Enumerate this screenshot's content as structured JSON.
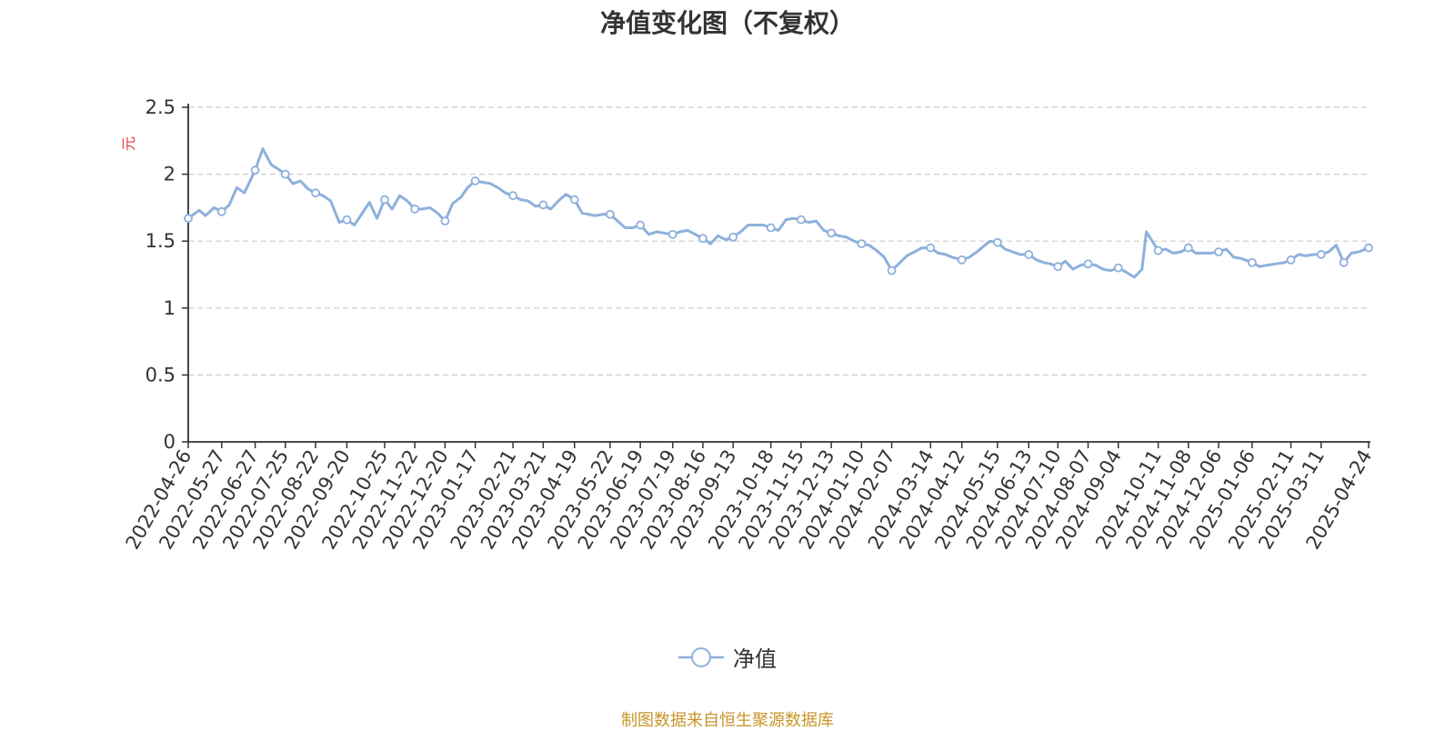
{
  "chart_data": {
    "type": "line",
    "title": "净值变化图（不复权）",
    "ylabel": "元",
    "xlabel": "",
    "ylim": [
      0,
      2.5
    ],
    "yticks": [
      0,
      0.5,
      1,
      1.5,
      2,
      2.5
    ],
    "ytick_labels": [
      "0",
      "0.5",
      "1",
      "1.5",
      "2",
      "2.5"
    ],
    "grid": true,
    "legend_position": "bottom-center",
    "x_tick_labels": [
      "2022-04-26",
      "2022-05-27",
      "2022-06-27",
      "2022-07-25",
      "2022-08-22",
      "2022-09-20",
      "2022-10-25",
      "2022-11-22",
      "2022-12-20",
      "2023-01-17",
      "2023-02-21",
      "2023-03-21",
      "2023-04-19",
      "2023-05-22",
      "2023-06-19",
      "2023-07-19",
      "2023-08-16",
      "2023-09-13",
      "2023-10-18",
      "2023-11-15",
      "2023-12-13",
      "2024-01-10",
      "2024-02-07",
      "2024-03-14",
      "2024-04-12",
      "2024-05-15",
      "2024-06-13",
      "2024-07-10",
      "2024-08-07",
      "2024-09-04",
      "2024-10-11",
      "2024-11-08",
      "2024-12-06",
      "2025-01-06",
      "2025-02-11",
      "2025-03-11",
      "2025-04-24"
    ],
    "series": [
      {
        "name": "净值",
        "color": "#8eb0dc",
        "x": [
          "2022-04-26",
          "2022-05-06",
          "2022-05-12",
          "2022-05-20",
          "2022-05-27",
          "2022-06-03",
          "2022-06-10",
          "2022-06-17",
          "2022-06-27",
          "2022-07-04",
          "2022-07-12",
          "2022-07-18",
          "2022-07-25",
          "2022-08-01",
          "2022-08-08",
          "2022-08-15",
          "2022-08-22",
          "2022-08-29",
          "2022-09-05",
          "2022-09-13",
          "2022-09-20",
          "2022-09-27",
          "2022-10-11",
          "2022-10-18",
          "2022-10-25",
          "2022-11-01",
          "2022-11-08",
          "2022-11-15",
          "2022-11-22",
          "2022-11-29",
          "2022-12-06",
          "2022-12-13",
          "2022-12-20",
          "2022-12-27",
          "2023-01-04",
          "2023-01-10",
          "2023-01-17",
          "2023-01-31",
          "2023-02-07",
          "2023-02-14",
          "2023-02-21",
          "2023-02-28",
          "2023-03-07",
          "2023-03-14",
          "2023-03-21",
          "2023-03-28",
          "2023-04-04",
          "2023-04-11",
          "2023-04-19",
          "2023-04-26",
          "2023-05-08",
          "2023-05-15",
          "2023-05-22",
          "2023-05-29",
          "2023-06-05",
          "2023-06-12",
          "2023-06-19",
          "2023-06-27",
          "2023-07-04",
          "2023-07-11",
          "2023-07-19",
          "2023-07-26",
          "2023-08-02",
          "2023-08-09",
          "2023-08-16",
          "2023-08-23",
          "2023-08-30",
          "2023-09-06",
          "2023-09-13",
          "2023-09-20",
          "2023-09-27",
          "2023-10-11",
          "2023-10-18",
          "2023-10-25",
          "2023-11-01",
          "2023-11-08",
          "2023-11-15",
          "2023-11-22",
          "2023-11-29",
          "2023-12-06",
          "2023-12-13",
          "2023-12-20",
          "2023-12-27",
          "2024-01-03",
          "2024-01-10",
          "2024-01-17",
          "2024-01-24",
          "2024-01-31",
          "2024-02-07",
          "2024-02-21",
          "2024-02-28",
          "2024-03-06",
          "2024-03-14",
          "2024-03-21",
          "2024-03-28",
          "2024-04-03",
          "2024-04-12",
          "2024-04-19",
          "2024-04-26",
          "2024-05-08",
          "2024-05-15",
          "2024-05-22",
          "2024-05-29",
          "2024-06-05",
          "2024-06-13",
          "2024-06-20",
          "2024-06-27",
          "2024-07-03",
          "2024-07-10",
          "2024-07-17",
          "2024-07-24",
          "2024-07-31",
          "2024-08-07",
          "2024-08-14",
          "2024-08-21",
          "2024-08-28",
          "2024-09-04",
          "2024-09-11",
          "2024-09-19",
          "2024-09-26",
          "2024-09-30",
          "2024-10-11",
          "2024-10-18",
          "2024-10-25",
          "2024-11-01",
          "2024-11-08",
          "2024-11-15",
          "2024-11-22",
          "2024-11-29",
          "2024-12-06",
          "2024-12-13",
          "2024-12-20",
          "2024-12-27",
          "2025-01-06",
          "2025-01-13",
          "2025-01-20",
          "2025-02-05",
          "2025-02-11",
          "2025-02-18",
          "2025-02-25",
          "2025-03-04",
          "2025-03-11",
          "2025-03-18",
          "2025-03-25",
          "2025-04-01",
          "2025-04-08",
          "2025-04-15",
          "2025-04-24"
        ],
        "values": [
          1.67,
          1.73,
          1.69,
          1.75,
          1.72,
          1.77,
          1.9,
          1.86,
          2.03,
          2.19,
          2.07,
          2.04,
          2.0,
          1.93,
          1.95,
          1.89,
          1.86,
          1.84,
          1.8,
          1.64,
          1.66,
          1.62,
          1.79,
          1.67,
          1.81,
          1.74,
          1.84,
          1.8,
          1.74,
          1.74,
          1.75,
          1.71,
          1.65,
          1.78,
          1.83,
          1.9,
          1.95,
          1.93,
          1.9,
          1.86,
          1.84,
          1.81,
          1.8,
          1.76,
          1.77,
          1.74,
          1.8,
          1.85,
          1.81,
          1.71,
          1.69,
          1.7,
          1.7,
          1.65,
          1.6,
          1.6,
          1.62,
          1.55,
          1.57,
          1.56,
          1.55,
          1.57,
          1.58,
          1.55,
          1.52,
          1.48,
          1.54,
          1.51,
          1.53,
          1.57,
          1.62,
          1.62,
          1.6,
          1.58,
          1.66,
          1.67,
          1.66,
          1.64,
          1.65,
          1.58,
          1.56,
          1.54,
          1.53,
          1.5,
          1.48,
          1.47,
          1.43,
          1.38,
          1.28,
          1.39,
          1.42,
          1.45,
          1.45,
          1.41,
          1.4,
          1.38,
          1.36,
          1.38,
          1.42,
          1.5,
          1.49,
          1.44,
          1.42,
          1.4,
          1.4,
          1.36,
          1.34,
          1.33,
          1.31,
          1.35,
          1.29,
          1.32,
          1.33,
          1.32,
          1.29,
          1.28,
          1.3,
          1.27,
          1.23,
          1.29,
          1.57,
          1.43,
          1.44,
          1.41,
          1.42,
          1.45,
          1.41,
          1.41,
          1.41,
          1.42,
          1.44,
          1.38,
          1.37,
          1.34,
          1.31,
          1.32,
          1.34,
          1.36,
          1.4,
          1.39,
          1.4,
          1.4,
          1.42,
          1.47,
          1.34,
          1.41,
          1.42,
          1.45
        ]
      }
    ],
    "marker_x": [
      "2022-04-26",
      "2022-05-27",
      "2022-06-27",
      "2022-07-25",
      "2022-08-22",
      "2022-09-20",
      "2022-10-25",
      "2022-11-22",
      "2022-12-20",
      "2023-01-17",
      "2023-02-21",
      "2023-03-21",
      "2023-04-19",
      "2023-05-22",
      "2023-06-19",
      "2023-07-19",
      "2023-08-16",
      "2023-09-13",
      "2023-10-18",
      "2023-11-15",
      "2023-12-13",
      "2024-01-10",
      "2024-02-07",
      "2024-03-14",
      "2024-04-12",
      "2024-05-15",
      "2024-06-13",
      "2024-07-10",
      "2024-08-07",
      "2024-09-04",
      "2024-10-11",
      "2024-11-08",
      "2024-12-06",
      "2025-01-06",
      "2025-02-11",
      "2025-03-11",
      "2025-04-01",
      "2025-04-24"
    ]
  },
  "legend": {
    "label": "净值"
  },
  "source_note": "制图数据来自恒生聚源数据库"
}
